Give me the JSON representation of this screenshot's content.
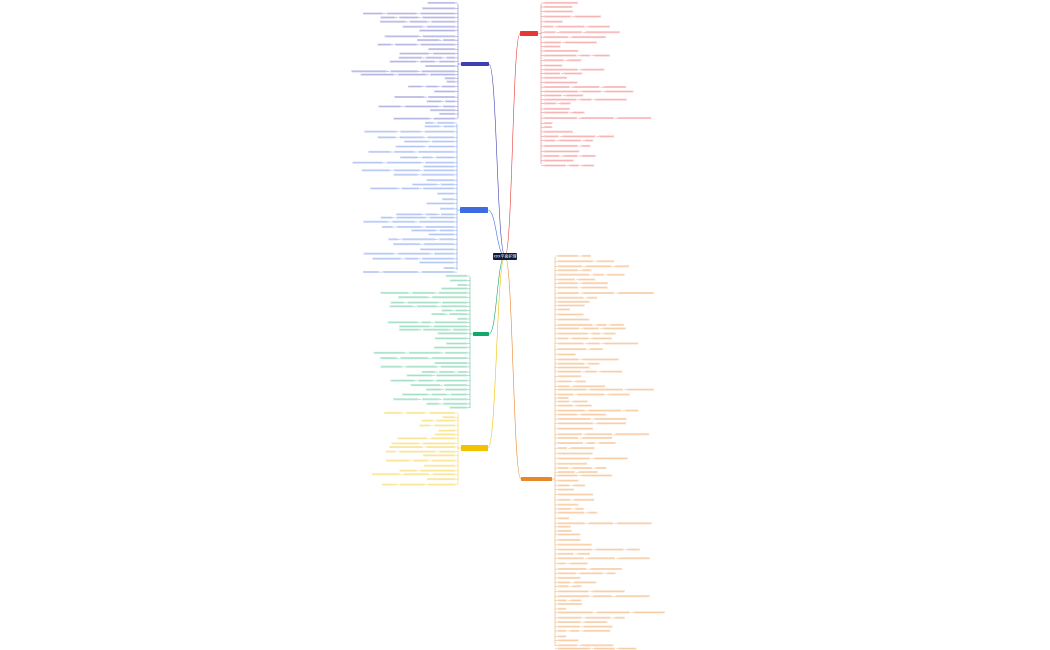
{
  "root": {
    "label": "xxx平面护理"
  }
}
